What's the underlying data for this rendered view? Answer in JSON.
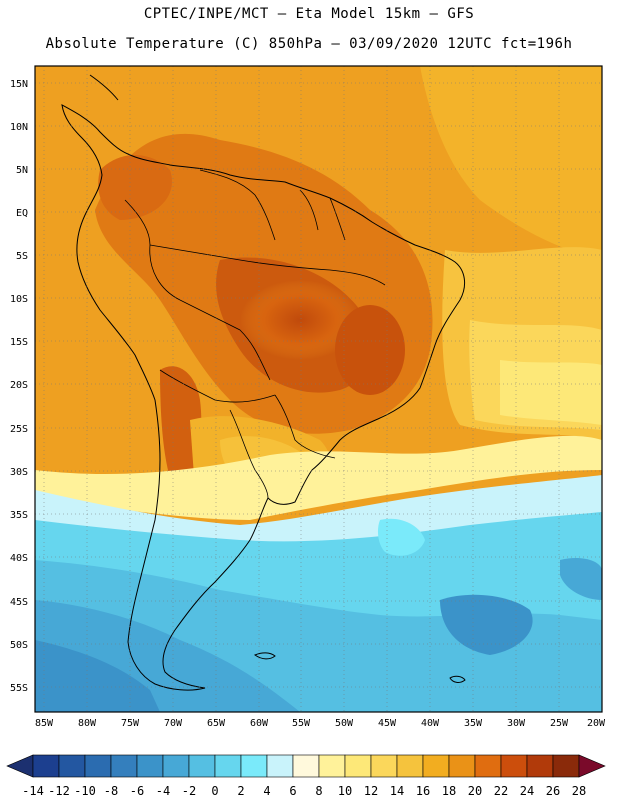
{
  "header": {
    "line1": "CPTEC/INPE/MCT –  Eta Model 15km – GFS",
    "line2": "Absolute Temperature (C) 850hPa – 03/09/2020 12UTC fct=196h"
  },
  "map": {
    "lat_labels": [
      "15N",
      "10N",
      "5N",
      "EQ",
      "5S",
      "10S",
      "15S",
      "20S",
      "25S",
      "30S",
      "35S",
      "40S",
      "45S",
      "50S",
      "55S"
    ],
    "lon_labels": [
      "85W",
      "80W",
      "75W",
      "70W",
      "65W",
      "60W",
      "55W",
      "50W",
      "45W",
      "40W",
      "35W",
      "30W",
      "25W",
      "20W"
    ]
  },
  "colorbar": {
    "labels": [
      "-14",
      "-12",
      "-10",
      "-8",
      "-6",
      "-4",
      "-2",
      "0",
      "2",
      "4",
      "6",
      "8",
      "10",
      "12",
      "14",
      "16",
      "18",
      "20",
      "22",
      "24",
      "26",
      "28"
    ],
    "colors": [
      "#1c3f8f",
      "#2357a1",
      "#2b6cb0",
      "#347fbd",
      "#3b93c9",
      "#47a8d6",
      "#55bfe2",
      "#66d6ee",
      "#7aeafa",
      "#c9f3fb",
      "#fff9dc",
      "#fff29a",
      "#fde878",
      "#fbd75b",
      "#f5c33d",
      "#f2ad20",
      "#ea9217",
      "#e06d10",
      "#cc4e0c",
      "#b13a0a",
      "#8a2a0a"
    ],
    "low_color": "#1c3070",
    "high_color": "#7a0a2a"
  }
}
